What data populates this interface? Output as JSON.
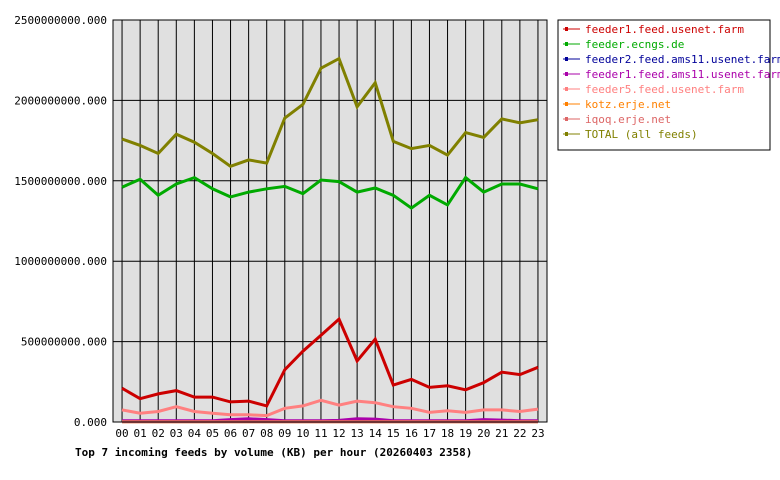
{
  "chart_data": {
    "type": "line",
    "title": "Top 7 incoming feeds by volume (KB) per hour (20260403 2358)",
    "xlabel": "",
    "ylabel": "",
    "ylim": [
      0,
      2500000000
    ],
    "yticks": [
      "0.000",
      "500000000.000",
      "1000000000.000",
      "1500000000.000",
      "2000000000.000",
      "2500000000.000"
    ],
    "x": [
      "00",
      "01",
      "02",
      "03",
      "04",
      "05",
      "06",
      "07",
      "08",
      "09",
      "10",
      "11",
      "12",
      "13",
      "14",
      "15",
      "16",
      "17",
      "18",
      "19",
      "20",
      "21",
      "22",
      "23"
    ],
    "grid": true,
    "legend_position": "top-right",
    "background_color": "#e0e0e0",
    "series": [
      {
        "name": "feeder1.feed.usenet.farm",
        "color": "#cc0000",
        "values": [
          210000000,
          145000000,
          175000000,
          195000000,
          155000000,
          155000000,
          125000000,
          130000000,
          100000000,
          325000000,
          440000000,
          540000000,
          640000000,
          380000000,
          515000000,
          230000000,
          265000000,
          215000000,
          225000000,
          200000000,
          245000000,
          310000000,
          295000000,
          340000000
        ]
      },
      {
        "name": "feeder.ecngs.de",
        "color": "#00aa00",
        "values": [
          1460000000,
          1510000000,
          1410000000,
          1480000000,
          1520000000,
          1450000000,
          1400000000,
          1430000000,
          1450000000,
          1465000000,
          1420000000,
          1505000000,
          1495000000,
          1430000000,
          1455000000,
          1410000000,
          1330000000,
          1410000000,
          1350000000,
          1520000000,
          1430000000,
          1480000000,
          1480000000,
          1450000000
        ]
      },
      {
        "name": "feeder2.feed.ams11.usenet.farm",
        "color": "#000099",
        "values": [
          5000000,
          5000000,
          5000000,
          5000000,
          5000000,
          5000000,
          5000000,
          5000000,
          5000000,
          5000000,
          5000000,
          5000000,
          5000000,
          5000000,
          5000000,
          5000000,
          5000000,
          5000000,
          5000000,
          5000000,
          5000000,
          5000000,
          5000000,
          5000000
        ]
      },
      {
        "name": "feeder1.feed.ams11.usenet.farm",
        "color": "#aa00aa",
        "values": [
          8000000,
          8000000,
          8000000,
          8000000,
          8000000,
          8000000,
          15000000,
          20000000,
          15000000,
          8000000,
          8000000,
          8000000,
          10000000,
          20000000,
          18000000,
          8000000,
          8000000,
          8000000,
          8000000,
          8000000,
          15000000,
          12000000,
          8000000,
          8000000
        ]
      },
      {
        "name": "feeder5.feed.usenet.farm",
        "color": "#ff8080",
        "values": [
          75000000,
          55000000,
          65000000,
          95000000,
          65000000,
          55000000,
          45000000,
          45000000,
          40000000,
          85000000,
          100000000,
          135000000,
          105000000,
          130000000,
          120000000,
          95000000,
          85000000,
          60000000,
          70000000,
          60000000,
          75000000,
          75000000,
          65000000,
          80000000
        ]
      },
      {
        "name": "kotz.erje.net",
        "color": "#ff8000",
        "values": [
          2000000,
          2000000,
          2000000,
          2000000,
          2000000,
          2000000,
          2000000,
          2000000,
          2000000,
          2000000,
          2000000,
          2000000,
          2000000,
          2000000,
          2000000,
          2000000,
          2000000,
          2000000,
          2000000,
          2000000,
          2000000,
          2000000,
          2000000,
          2000000
        ]
      },
      {
        "name": "iqoq.erje.net",
        "color": "#dd6666",
        "values": [
          1000000,
          1000000,
          1000000,
          1000000,
          1000000,
          1000000,
          1000000,
          1000000,
          1000000,
          1000000,
          1000000,
          1000000,
          1000000,
          1000000,
          1000000,
          1000000,
          1000000,
          1000000,
          1000000,
          1000000,
          1000000,
          1000000,
          1000000,
          1000000
        ]
      },
      {
        "name": "TOTAL (all feeds)",
        "color": "#808000",
        "values": [
          1760000000,
          1720000000,
          1670000000,
          1790000000,
          1740000000,
          1670000000,
          1590000000,
          1630000000,
          1610000000,
          1890000000,
          1975000000,
          2200000000,
          2260000000,
          1960000000,
          2110000000,
          1745000000,
          1700000000,
          1720000000,
          1660000000,
          1800000000,
          1770000000,
          1885000000,
          1860000000,
          1880000000
        ]
      }
    ]
  }
}
